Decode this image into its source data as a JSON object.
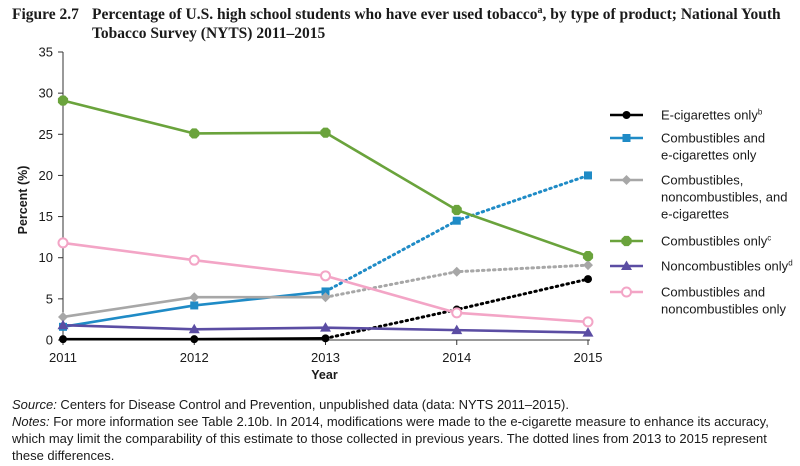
{
  "figure": {
    "label": "Figure 2.7",
    "title": "Percentage of U.S. high school students who have ever used tobacco",
    "title_sup": "a",
    "title_rest": ", by type of product; National Youth Tobacco Survey (NYTS) 2011–2015"
  },
  "notes": {
    "source_label": "Source:",
    "source_text": " Centers for Disease Control and Prevention, unpublished data (data: NYTS 2011–2015).",
    "notes_label": "Notes:",
    "notes_text": " For more information see Table 2.10b. In 2014, modifications were made to the e-cigarette measure to enhance its accuracy, which may limit the comparability of this estimate to those collected in previous years. The dotted lines from 2013 to 2015 represent these differences."
  },
  "chart_data": {
    "type": "line",
    "xlabel": "Year",
    "ylabel": "Percent (%)",
    "x": [
      2011,
      2012,
      2013,
      2014,
      2015
    ],
    "ylim": [
      0,
      35
    ],
    "yticks": [
      0,
      5,
      10,
      15,
      20,
      25,
      30,
      35
    ],
    "grid": false,
    "legend_position": "right",
    "dotted_from": 2013,
    "series": [
      {
        "name": "E-cigarettes only",
        "sup": "b",
        "legend_lines": [
          "E-cigarettes only"
        ],
        "color": "#000000",
        "marker": "circle",
        "values": [
          0.1,
          0.1,
          0.2,
          3.7,
          7.4
        ]
      },
      {
        "name": "Combustibles and e-cigarettes only",
        "sup": "",
        "legend_lines": [
          "Combustibles and",
          "e-cigarettes only"
        ],
        "color": "#1f8bc6",
        "marker": "square",
        "values": [
          1.6,
          4.2,
          5.9,
          14.5,
          20.0
        ]
      },
      {
        "name": "Combustibles, noncombustibles, and e-cigarettes",
        "sup": "",
        "legend_lines": [
          "Combustibles,",
          "noncombustibles, and",
          "e-cigarettes"
        ],
        "color": "#a7a7a7",
        "marker": "diamond",
        "values": [
          2.8,
          5.2,
          5.2,
          8.3,
          9.1
        ]
      },
      {
        "name": "Combustibles only",
        "sup": "c",
        "legend_lines": [
          "Combustibles only"
        ],
        "color": "#6aa33c",
        "marker": "hexagon",
        "values": [
          29.1,
          25.1,
          25.2,
          15.8,
          10.2
        ]
      },
      {
        "name": "Noncombustibles only",
        "sup": "d",
        "legend_lines": [
          "Noncombustibles only"
        ],
        "color": "#5b4da3",
        "marker": "triangle",
        "values": [
          1.8,
          1.3,
          1.5,
          1.2,
          0.9
        ]
      },
      {
        "name": "Combustibles and noncombustibles only",
        "sup": "",
        "legend_lines": [
          "Combustibles and",
          "noncombustibles only"
        ],
        "color": "#f3a5c6",
        "marker": "open-circle",
        "values": [
          11.8,
          9.7,
          7.8,
          3.3,
          2.2
        ]
      }
    ]
  }
}
